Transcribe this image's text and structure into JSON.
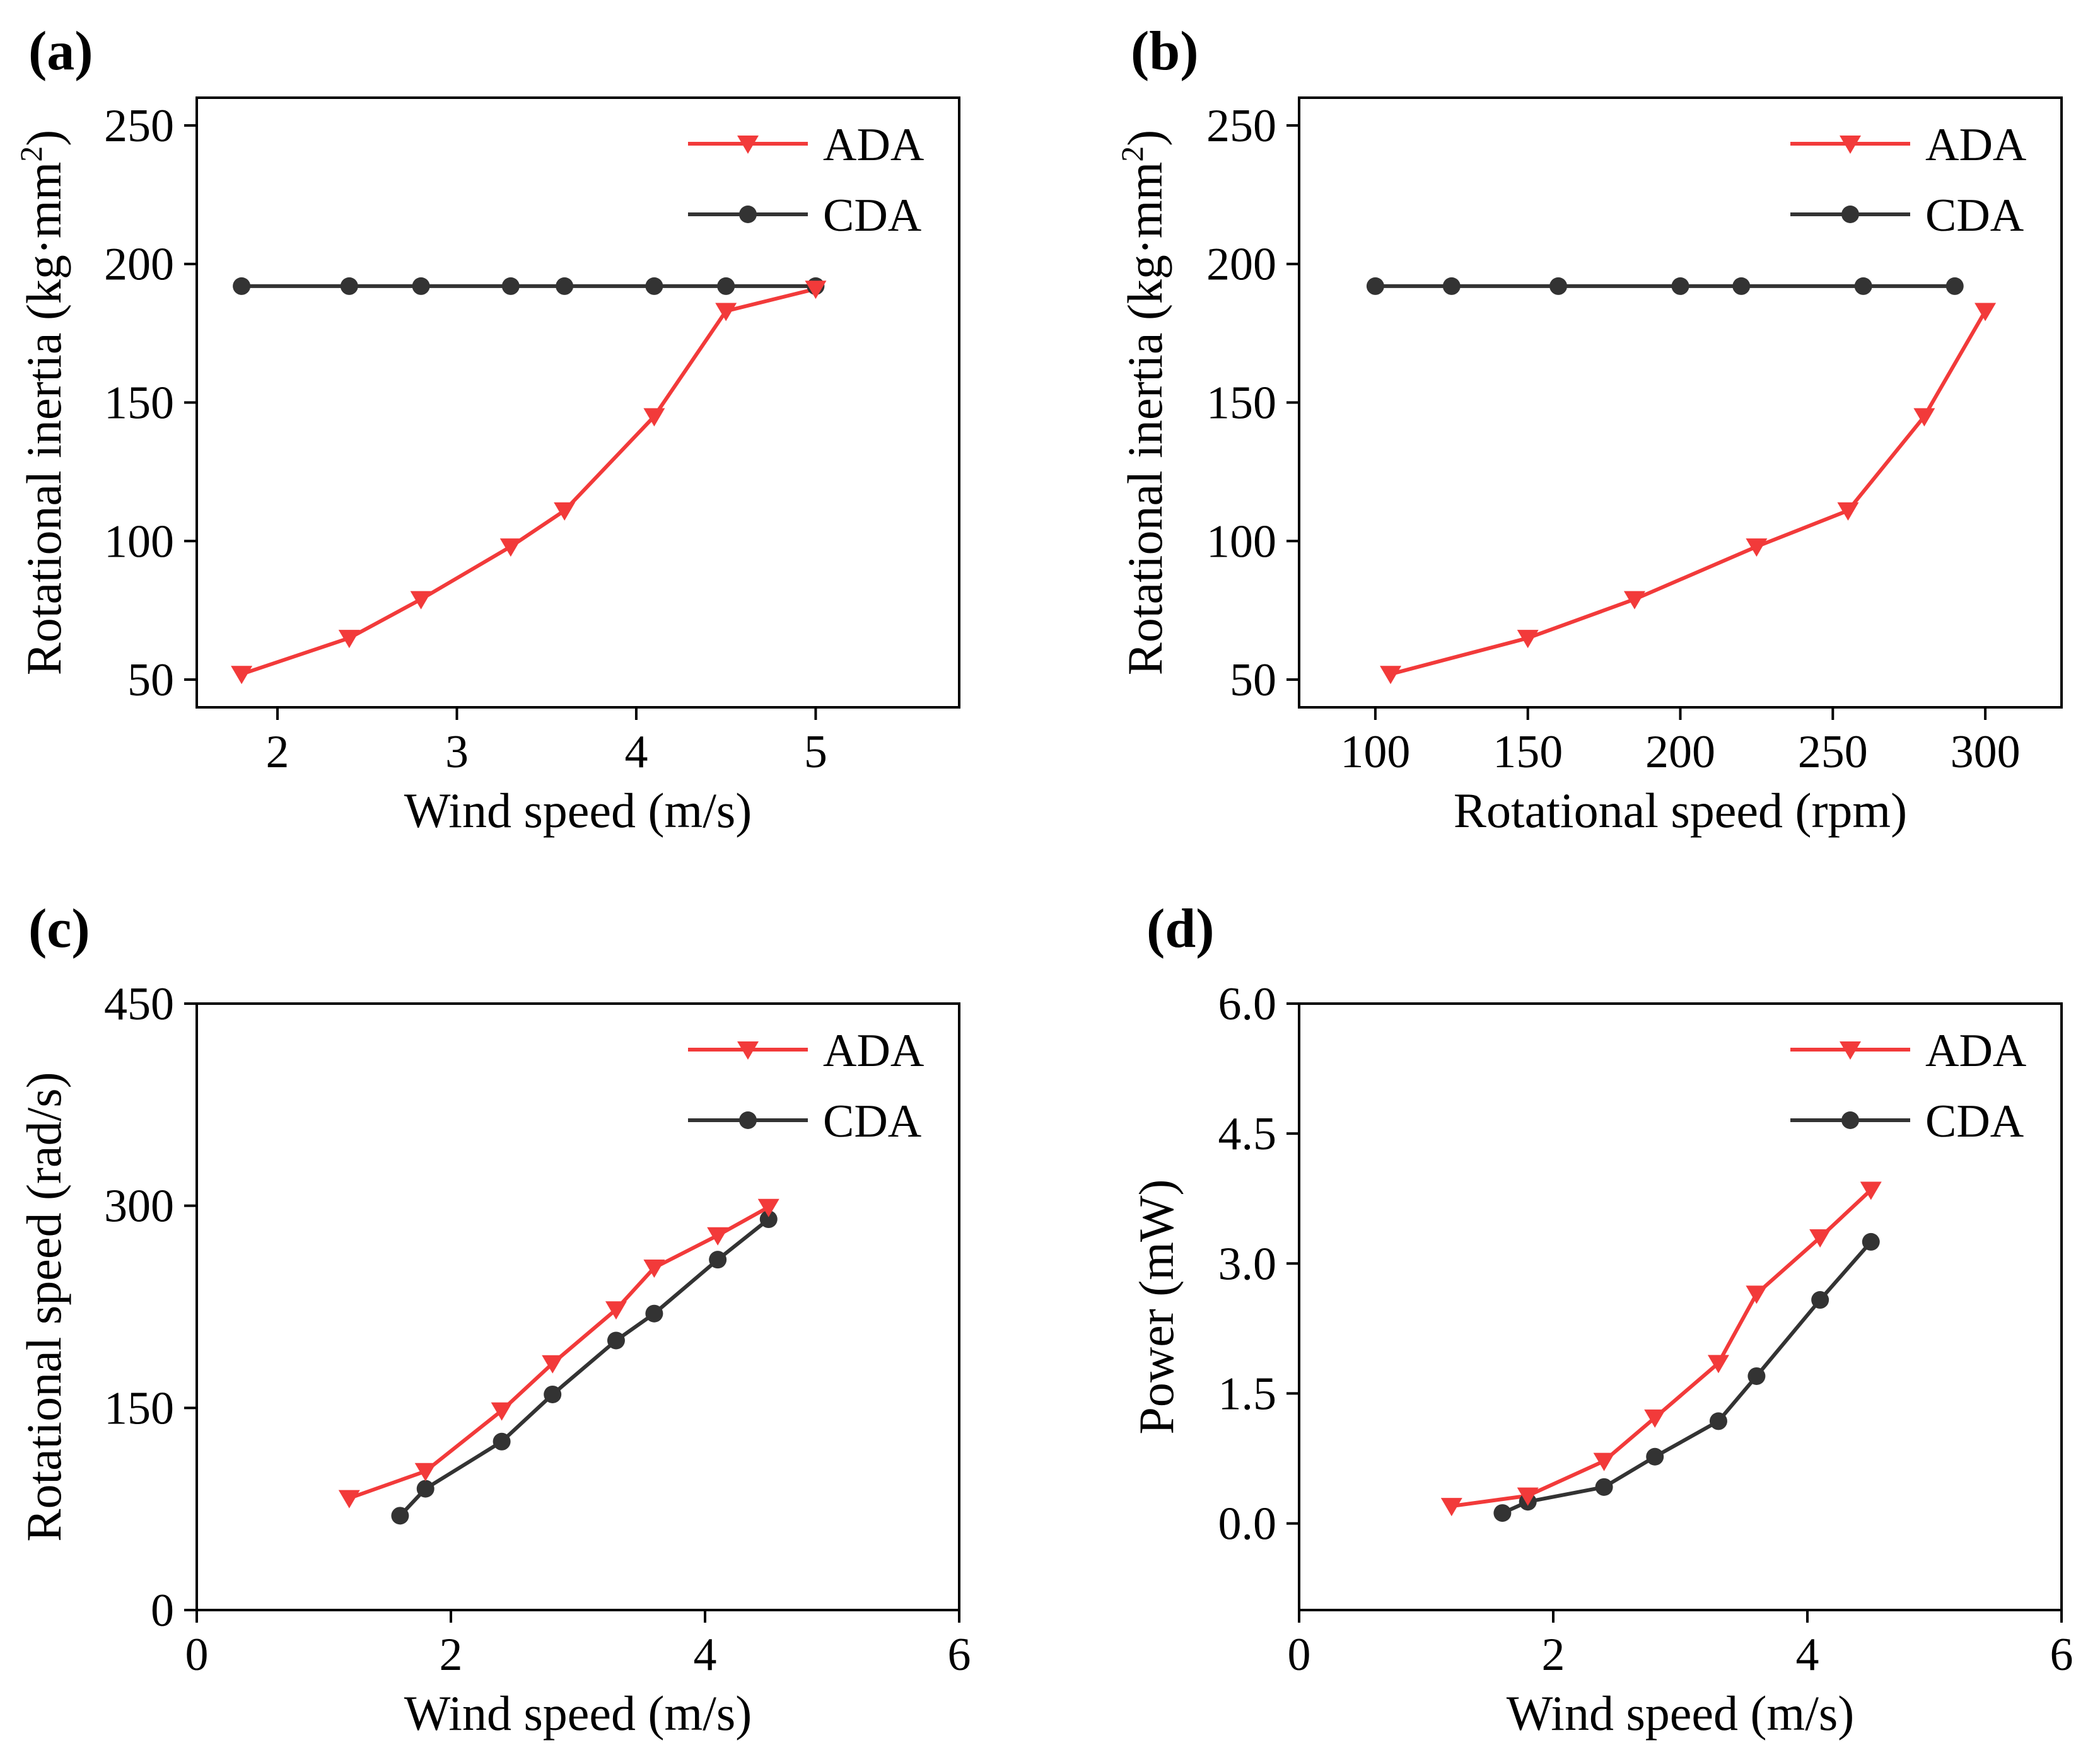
{
  "figure": {
    "colors": {
      "ada": "#f23a3a",
      "cda": "#333333",
      "axis": "#000000",
      "background": "#ffffff"
    }
  },
  "chart_data": [
    {
      "id": "a",
      "panel_label": "(a)",
      "type": "line",
      "xlabel": "Wind speed (m/s)",
      "ylabel_main": "Rotational inertia (kg·mm",
      "ylabel_sup": "2",
      "ylabel_tail": ")",
      "xlim": [
        1.55,
        5.8
      ],
      "ylim": [
        40,
        260
      ],
      "xticks": [
        2,
        3,
        4,
        5
      ],
      "xtick_labels": [
        "2",
        "3",
        "4",
        "5"
      ],
      "yticks": [
        50,
        100,
        150,
        200,
        250
      ],
      "ytick_labels": [
        "50",
        "100",
        "150",
        "200",
        "250"
      ],
      "legend_position": "top-right",
      "series": [
        {
          "name": "ADA",
          "marker": "triangle-down",
          "x": [
            1.8,
            2.4,
            2.8,
            3.3,
            3.6,
            4.1,
            4.5,
            5.0
          ],
          "y": [
            52,
            65,
            79,
            98,
            111,
            145,
            183,
            191
          ]
        },
        {
          "name": "CDA",
          "marker": "circle",
          "x": [
            1.8,
            2.4,
            2.8,
            3.3,
            3.6,
            4.1,
            4.5,
            5.0
          ],
          "y": [
            192,
            192,
            192,
            192,
            192,
            192,
            192,
            192
          ]
        }
      ]
    },
    {
      "id": "b",
      "panel_label": "(b)",
      "type": "line",
      "xlabel": "Rotational speed (rpm)",
      "ylabel_main": "Rotational inertia (kg·mm",
      "ylabel_sup": "2",
      "ylabel_tail": ")",
      "xlim": [
        75,
        325
      ],
      "ylim": [
        40,
        260
      ],
      "xticks": [
        100,
        150,
        200,
        250,
        300
      ],
      "xtick_labels": [
        "100",
        "150",
        "200",
        "250",
        "300"
      ],
      "yticks": [
        50,
        100,
        150,
        200,
        250
      ],
      "ytick_labels": [
        "50",
        "100",
        "150",
        "200",
        "250"
      ],
      "legend_position": "top-right",
      "series": [
        {
          "name": "ADA",
          "marker": "triangle-down",
          "x": [
            105,
            150,
            185,
            225,
            255,
            280,
            300
          ],
          "y": [
            52,
            65,
            79,
            98,
            111,
            145,
            183
          ]
        },
        {
          "name": "CDA",
          "marker": "circle",
          "x": [
            100,
            125,
            160,
            200,
            220,
            260,
            290
          ],
          "y": [
            192,
            192,
            192,
            192,
            192,
            192,
            192
          ]
        }
      ]
    },
    {
      "id": "c",
      "panel_label": "(c)",
      "type": "line",
      "xlabel": "Wind speed (m/s)",
      "ylabel_main": "Rotational speed (rad/s)",
      "ylabel_sup": "",
      "ylabel_tail": "",
      "xlim": [
        0,
        6
      ],
      "ylim": [
        0,
        450
      ],
      "xticks": [
        0,
        2,
        4,
        6
      ],
      "xtick_labels": [
        "0",
        "2",
        "4",
        "6"
      ],
      "yticks": [
        0,
        150,
        300,
        450
      ],
      "ytick_labels": [
        "0",
        "150",
        "300",
        "450"
      ],
      "legend_position": "top-right",
      "series": [
        {
          "name": "ADA",
          "marker": "triangle-down",
          "x": [
            1.2,
            1.8,
            2.4,
            2.8,
            3.3,
            3.6,
            4.1,
            4.5
          ],
          "y": [
            83,
            103,
            148,
            183,
            223,
            254,
            278,
            299
          ]
        },
        {
          "name": "CDA",
          "marker": "circle",
          "x": [
            1.6,
            1.8,
            2.4,
            2.8,
            3.3,
            3.6,
            4.1,
            4.5
          ],
          "y": [
            70,
            90,
            125,
            160,
            200,
            220,
            260,
            290
          ]
        }
      ]
    },
    {
      "id": "d",
      "panel_label": "(d)",
      "type": "line",
      "xlabel": "Wind speed (m/s)",
      "ylabel_main": "Power (mW)",
      "ylabel_sup": "",
      "ylabel_tail": "",
      "xlim": [
        0,
        6
      ],
      "ylim": [
        -1,
        6
      ],
      "xticks": [
        0,
        2,
        4,
        6
      ],
      "xtick_labels": [
        "0",
        "2",
        "4",
        "6"
      ],
      "yticks": [
        0,
        1.5,
        3,
        4.5,
        6
      ],
      "ytick_labels": [
        "0.0",
        "1.5",
        "3.0",
        "4.5",
        "6.0"
      ],
      "legend_position": "top-right",
      "series": [
        {
          "name": "ADA",
          "marker": "triangle-down",
          "x": [
            1.2,
            1.8,
            2.4,
            2.8,
            3.3,
            3.6,
            4.1,
            4.5
          ],
          "y": [
            0.2,
            0.32,
            0.72,
            1.22,
            1.85,
            2.65,
            3.3,
            3.85
          ]
        },
        {
          "name": "CDA",
          "marker": "circle",
          "x": [
            1.6,
            1.8,
            2.4,
            2.8,
            3.3,
            3.6,
            4.1,
            4.5
          ],
          "y": [
            0.12,
            0.25,
            0.42,
            0.77,
            1.18,
            1.7,
            2.58,
            3.25
          ]
        }
      ]
    }
  ]
}
